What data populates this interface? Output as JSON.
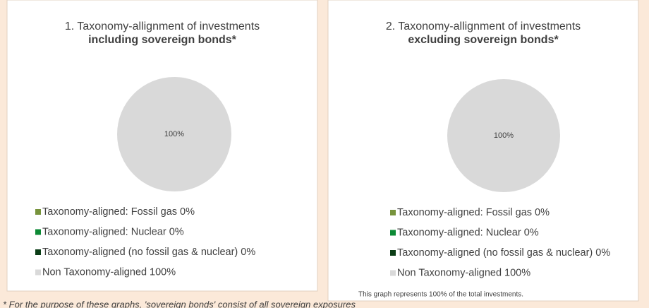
{
  "chart_data": [
    {
      "type": "pie",
      "title": "1. Taxonomy-allignment of investments",
      "subtitle": "including sovereign bonds*",
      "series": [
        {
          "name": "Taxonomy-aligned: Fossil gas",
          "color": "#77933c",
          "values": [
            0
          ],
          "value_labels": [
            "0%"
          ]
        },
        {
          "name": "Taxonomy-aligned: Nuclear",
          "color": "#0d8a35",
          "values": [
            0
          ],
          "value_labels": [
            "0%"
          ]
        },
        {
          "name": "Taxonomy-aligned (no fossil gas & nuclear)",
          "color": "#0b3d16",
          "values": [
            0
          ],
          "value_labels": [
            "0%"
          ]
        },
        {
          "name": "Non Taxonomy-aligned",
          "color": "#d9d9d9",
          "values": [
            100
          ],
          "value_labels": [
            "100%"
          ]
        }
      ]
    },
    {
      "type": "pie",
      "title": "2. Taxonomy-allignment of investments",
      "subtitle": "excluding sovereign bonds*",
      "note": "This graph represents 100% of the total investments.",
      "series": [
        {
          "name": "Taxonomy-aligned: Fossil gas",
          "color": "#77933c",
          "values": [
            0
          ],
          "value_labels": [
            "0%"
          ]
        },
        {
          "name": "Taxonomy-aligned: Nuclear",
          "color": "#0d8a35",
          "values": [
            0
          ],
          "value_labels": [
            "0%"
          ]
        },
        {
          "name": "Taxonomy-aligned (no fossil gas & nuclear)",
          "color": "#0b3d16",
          "values": [
            0
          ],
          "value_labels": [
            "0%"
          ]
        },
        {
          "name": "Non Taxonomy-aligned",
          "color": "#d9d9d9",
          "values": [
            100
          ],
          "value_labels": [
            "100%"
          ]
        }
      ]
    }
  ],
  "footnote": "* For the purpose of these graphs, 'sovereign bonds' consist of all sovereign exposures"
}
